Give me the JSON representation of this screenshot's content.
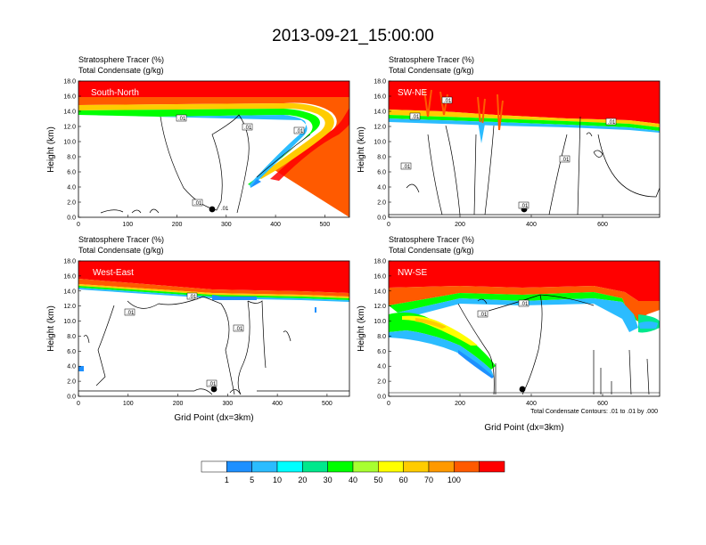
{
  "title": "2013-09-21_15:00:00",
  "header_line1": "Stratosphere Tracer   (%)",
  "header_line2": "Total Condensate   (g/kg)",
  "y_axis_label": "Height (km)",
  "x_axis_label": "Grid Point (dx=3km)",
  "contour_note": "Total Condensate Contours: .01 to .01 by .000",
  "y_ticks": [
    "0.0",
    "2.0",
    "4.0",
    "6.0",
    "8.0",
    "10.0",
    "12.0",
    "14.0",
    "16.0",
    "18.0"
  ],
  "colorbar": {
    "labels": [
      "1",
      "5",
      "10",
      "20",
      "30",
      "40",
      "50",
      "60",
      "70",
      "100"
    ],
    "colors": [
      "#ffffff",
      "#1e90ff",
      "#2bbcff",
      "#00ffff",
      "#00e88c",
      "#00ff00",
      "#a8ff30",
      "#ffff00",
      "#ffcc00",
      "#ff9900",
      "#ff5a00",
      "#ff0000"
    ]
  },
  "chart_data": [
    {
      "type": "contour",
      "name": "South-North",
      "xlim": [
        0,
        550
      ],
      "ylim": [
        0,
        18
      ],
      "x_ticks": [
        "0",
        "100",
        "200",
        "300",
        "400",
        "500"
      ],
      "x_tick_values": [
        0,
        100,
        200,
        300,
        400,
        500
      ],
      "contour_labels": [
        ".01",
        ".01",
        ".01",
        ".01",
        ".01"
      ],
      "contour_level": 0.01,
      "tracer_top_band_base_km": 15.2
    },
    {
      "type": "contour",
      "name": "SW-NE",
      "xlim": [
        0,
        760
      ],
      "ylim": [
        0,
        18
      ],
      "x_ticks": [
        "0",
        "200",
        "400",
        "600"
      ],
      "x_tick_values": [
        0,
        200,
        400,
        600
      ],
      "contour_labels": [
        ".01",
        ".01",
        ".01",
        ".01",
        ".01",
        ".01"
      ],
      "contour_level": 0.01,
      "tracer_top_band_base_km": 14.5
    },
    {
      "type": "contour",
      "name": "West-East",
      "xlim": [
        0,
        545
      ],
      "ylim": [
        0,
        18
      ],
      "x_ticks": [
        "0",
        "100",
        "200",
        "300",
        "400",
        "500"
      ],
      "x_tick_values": [
        0,
        100,
        200,
        300,
        400,
        500
      ],
      "contour_labels": [
        ".01",
        ".01",
        ".01",
        ".01"
      ],
      "contour_level": 0.01,
      "tracer_top_band_base_km": 14.2
    },
    {
      "type": "contour",
      "name": "NW-SE",
      "xlim": [
        0,
        760
      ],
      "ylim": [
        0,
        18
      ],
      "x_ticks": [
        "0",
        "200",
        "400",
        "600"
      ],
      "x_tick_values": [
        0,
        200,
        400,
        600
      ],
      "contour_labels": [
        ".01",
        ".01"
      ],
      "contour_level": 0.01,
      "tracer_top_band_base_km": 14.0
    }
  ]
}
